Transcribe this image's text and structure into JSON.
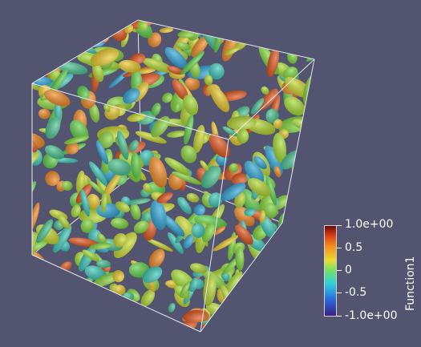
{
  "render": {
    "background": "#525470",
    "outline_color": "#e6e6ee"
  },
  "colorbar": {
    "title": "Function1",
    "labels": [
      "1.0e+00",
      "0.5",
      "0",
      "-0.5",
      "-1.0e+00"
    ],
    "colormap": [
      "#3b1f80",
      "#2a6ae0",
      "#2fd3d8",
      "#71e06a",
      "#e8dc2c",
      "#f58a1e",
      "#d43a14",
      "#6a0a0a"
    ]
  }
}
